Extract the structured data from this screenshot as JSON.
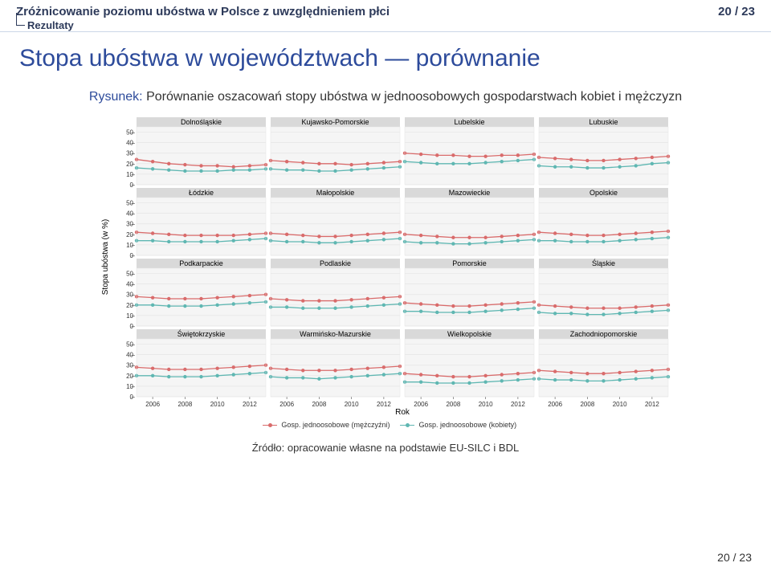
{
  "header": {
    "title": "Zróżnicowanie poziomu ubóstwa w Polsce z uwzględnieniem płci",
    "page_indicator": "20 / 23",
    "breadcrumb": "Rezultaty"
  },
  "section_title": "Stopa ubóstwa w województwach — porównanie",
  "caption": {
    "lead": "Rysunek:",
    "rest": "Porównanie oszacowań stopy ubóstwa w jednoosobowych gospodarstwach kobiet i mężczyzn"
  },
  "chart": {
    "y_axis_label": "Stopa ubóstwa (w %)",
    "x_axis_label": "Rok",
    "x_ticks": [
      2006,
      2008,
      2010,
      2012
    ],
    "y_ticks": [
      0,
      10,
      20,
      30,
      40,
      50
    ],
    "ylim": [
      0,
      55
    ],
    "colors": {
      "series_m": "#d96b6b",
      "series_k": "#5fb7b2",
      "grid": "#e5e5e5",
      "panel_bg": "#f5f5f5",
      "panel_header_bg": "#d9d9d9",
      "axis": "#666666"
    },
    "line_width": 1.3,
    "marker_radius": 2.2,
    "panels": [
      {
        "title": "Dolnośląskie",
        "m": [
          24,
          22,
          20,
          19,
          18,
          18,
          17,
          18,
          19
        ],
        "k": [
          16,
          15,
          14,
          13,
          13,
          13,
          14,
          14,
          15
        ]
      },
      {
        "title": "Kujawsko-Pomorskie",
        "m": [
          23,
          22,
          21,
          20,
          20,
          19,
          20,
          21,
          22
        ],
        "k": [
          15,
          14,
          14,
          13,
          13,
          14,
          15,
          16,
          17
        ]
      },
      {
        "title": "Lubelskie",
        "m": [
          30,
          29,
          28,
          28,
          27,
          27,
          28,
          28,
          29
        ],
        "k": [
          22,
          21,
          20,
          20,
          20,
          21,
          22,
          23,
          24
        ]
      },
      {
        "title": "Lubuskie",
        "m": [
          26,
          25,
          24,
          23,
          23,
          24,
          25,
          26,
          27
        ],
        "k": [
          18,
          17,
          17,
          16,
          16,
          17,
          18,
          20,
          21
        ]
      },
      {
        "title": "Łódzkie",
        "m": [
          22,
          21,
          20,
          19,
          19,
          19,
          19,
          20,
          21
        ],
        "k": [
          14,
          14,
          13,
          13,
          13,
          13,
          14,
          15,
          16
        ]
      },
      {
        "title": "Małopolskie",
        "m": [
          21,
          20,
          19,
          18,
          18,
          19,
          20,
          21,
          22
        ],
        "k": [
          14,
          13,
          13,
          12,
          12,
          13,
          14,
          15,
          16
        ]
      },
      {
        "title": "Mazowieckie",
        "m": [
          20,
          19,
          18,
          17,
          17,
          17,
          18,
          19,
          20
        ],
        "k": [
          13,
          12,
          12,
          11,
          11,
          12,
          13,
          14,
          15
        ]
      },
      {
        "title": "Opolskie",
        "m": [
          22,
          21,
          20,
          19,
          19,
          20,
          21,
          22,
          23
        ],
        "k": [
          14,
          14,
          13,
          13,
          13,
          14,
          15,
          16,
          17
        ]
      },
      {
        "title": "Podkarpackie",
        "m": [
          28,
          27,
          26,
          26,
          26,
          27,
          28,
          29,
          30
        ],
        "k": [
          20,
          20,
          19,
          19,
          19,
          20,
          21,
          22,
          23
        ]
      },
      {
        "title": "Podlaskie",
        "m": [
          26,
          25,
          24,
          24,
          24,
          25,
          26,
          27,
          28
        ],
        "k": [
          18,
          18,
          17,
          17,
          17,
          18,
          19,
          20,
          21
        ]
      },
      {
        "title": "Pomorskie",
        "m": [
          22,
          21,
          20,
          19,
          19,
          20,
          21,
          22,
          23
        ],
        "k": [
          14,
          14,
          13,
          13,
          13,
          14,
          15,
          16,
          17
        ]
      },
      {
        "title": "Śląskie",
        "m": [
          20,
          19,
          18,
          17,
          17,
          17,
          18,
          19,
          20
        ],
        "k": [
          13,
          12,
          12,
          11,
          11,
          12,
          13,
          14,
          15
        ]
      },
      {
        "title": "Świętokrzyskie",
        "m": [
          28,
          27,
          26,
          26,
          26,
          27,
          28,
          29,
          30
        ],
        "k": [
          20,
          20,
          19,
          19,
          19,
          20,
          21,
          22,
          23
        ]
      },
      {
        "title": "Warmińsko-Mazurskie",
        "m": [
          27,
          26,
          25,
          25,
          25,
          26,
          27,
          28,
          29
        ],
        "k": [
          19,
          18,
          18,
          17,
          18,
          19,
          20,
          21,
          22
        ]
      },
      {
        "title": "Wielkopolskie",
        "m": [
          22,
          21,
          20,
          19,
          19,
          20,
          21,
          22,
          23
        ],
        "k": [
          14,
          14,
          13,
          13,
          13,
          14,
          15,
          16,
          17
        ]
      },
      {
        "title": "Zachodniopomorskie",
        "m": [
          25,
          24,
          23,
          22,
          22,
          23,
          24,
          25,
          26
        ],
        "k": [
          17,
          16,
          16,
          15,
          15,
          16,
          17,
          18,
          19
        ]
      }
    ],
    "legend": {
      "m": "Gosp. jednoosobowe (mężczyźni)",
      "k": "Gosp. jednoosobowe (kobiety)"
    }
  },
  "source": "Źródło: opracowanie własne na podstawie EU-SILC i BDL",
  "footer_page": "20 / 23"
}
